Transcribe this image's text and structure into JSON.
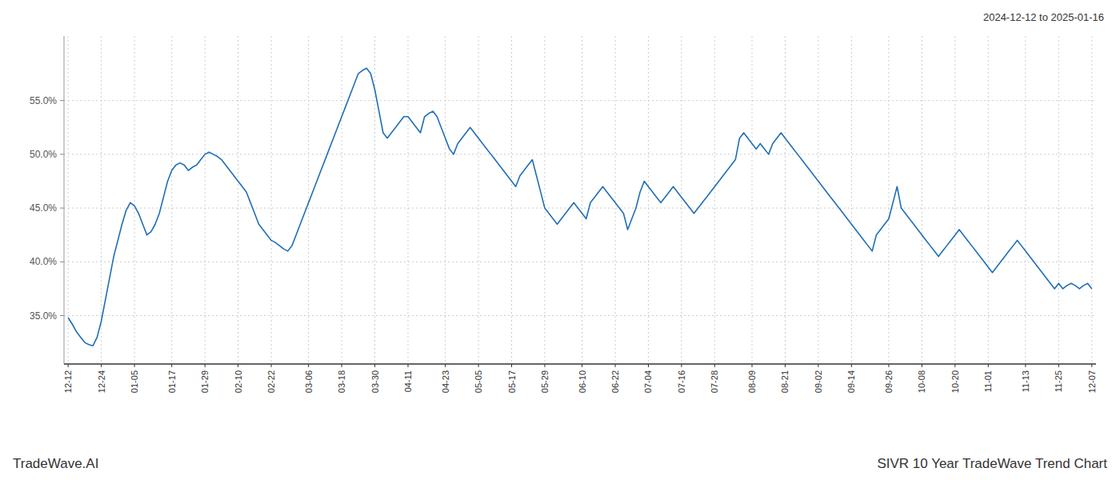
{
  "chart_data": {
    "type": "line",
    "title": "SIVR 10 Year TradeWave Trend Chart",
    "subtitle": "2024-12-12 to 2025-01-16",
    "annotations": [
      "TradeWave.AI"
    ],
    "color": "#1f6eb5",
    "grid": true,
    "ylim": [
      30.5,
      61.0
    ],
    "yticks": [
      {
        "value": 35.0,
        "label": "35.0%"
      },
      {
        "value": 40.0,
        "label": "40.0%"
      },
      {
        "value": 45.0,
        "label": "45.0%"
      },
      {
        "value": 50.0,
        "label": "50.0%"
      },
      {
        "value": 55.0,
        "label": "55.0%"
      }
    ],
    "categories": [
      "12-12",
      null,
      null,
      null,
      null,
      null,
      null,
      null,
      "12-24",
      null,
      null,
      null,
      null,
      null,
      null,
      null,
      "01-05",
      null,
      null,
      null,
      null,
      null,
      null,
      null,
      null,
      "01-17",
      null,
      null,
      null,
      null,
      null,
      null,
      null,
      "01-29",
      null,
      null,
      null,
      null,
      null,
      null,
      null,
      "02-10",
      null,
      null,
      null,
      null,
      null,
      null,
      null,
      "02-22",
      null,
      null,
      null,
      null,
      null,
      null,
      null,
      null,
      "03-06",
      null,
      null,
      null,
      null,
      null,
      null,
      null,
      "03-18",
      null,
      null,
      null,
      null,
      null,
      null,
      null,
      "03-30",
      null,
      null,
      null,
      null,
      null,
      null,
      null,
      "04-11",
      null,
      null,
      null,
      null,
      null,
      null,
      null,
      null,
      "04-23",
      null,
      null,
      null,
      null,
      null,
      null,
      null,
      "05-05",
      null,
      null,
      null,
      null,
      null,
      null,
      null,
      "05-17",
      null,
      null,
      null,
      null,
      null,
      null,
      null,
      "05-29",
      null,
      null,
      null,
      null,
      null,
      null,
      null,
      null,
      "06-10",
      null,
      null,
      null,
      null,
      null,
      null,
      null,
      "06-22",
      null,
      null,
      null,
      null,
      null,
      null,
      null,
      "07-04",
      null,
      null,
      null,
      null,
      null,
      null,
      null,
      "07-16",
      null,
      null,
      null,
      null,
      null,
      null,
      null,
      "07-28",
      null,
      null,
      null,
      null,
      null,
      null,
      null,
      null,
      "08-09",
      null,
      null,
      null,
      null,
      null,
      null,
      null,
      "08-21",
      null,
      null,
      null,
      null,
      null,
      null,
      null,
      "09-02",
      null,
      null,
      null,
      null,
      null,
      null,
      null,
      "09-14",
      null,
      null,
      null,
      null,
      null,
      null,
      null,
      null,
      "09-26",
      null,
      null,
      null,
      null,
      null,
      null,
      null,
      "10-08",
      null,
      null,
      null,
      null,
      null,
      null,
      null,
      "10-20",
      null,
      null,
      null,
      null,
      null,
      null,
      null,
      "11-01",
      null,
      null,
      null,
      null,
      null,
      null,
      null,
      null,
      "11-13",
      null,
      null,
      null,
      null,
      null,
      null,
      null,
      "11-25",
      null,
      null,
      null,
      null,
      null,
      null,
      null,
      "12-07"
    ],
    "values": [
      34.8,
      34.2,
      33.5,
      33.0,
      32.5,
      32.3,
      32.2,
      33.0,
      34.5,
      36.5,
      38.5,
      40.5,
      42.0,
      43.5,
      44.8,
      45.5,
      45.2,
      44.5,
      43.5,
      42.5,
      42.8,
      43.5,
      44.5,
      46.0,
      47.5,
      48.5,
      49.0,
      49.2,
      49.0,
      48.5,
      48.8,
      49.0,
      49.5,
      50.0,
      50.2,
      50.0,
      49.8,
      49.5,
      49.0,
      48.5,
      48.0,
      47.5,
      47.0,
      46.5,
      45.5,
      44.5,
      43.5,
      43.0,
      42.5,
      42.0,
      41.8,
      41.5,
      41.2,
      41.0,
      41.5,
      42.5,
      43.5,
      44.5,
      45.5,
      46.5,
      47.5,
      48.5,
      49.5,
      50.5,
      51.5,
      52.5,
      53.5,
      54.5,
      55.5,
      56.5,
      57.5,
      57.8,
      58.0,
      57.5,
      56.0,
      54.0,
      52.0,
      51.5,
      52.0,
      52.5,
      53.0,
      53.5,
      53.5,
      53.0,
      52.5,
      52.0,
      53.5,
      53.8,
      54.0,
      53.5,
      52.5,
      51.5,
      50.5,
      50.0,
      51.0,
      51.5,
      52.0,
      52.5,
      52.0,
      51.5,
      51.0,
      50.5,
      50.0,
      49.5,
      49.0,
      48.5,
      48.0,
      47.5,
      47.0,
      48.0,
      48.5,
      49.0,
      49.5,
      48.0,
      46.5,
      45.0,
      44.5,
      44.0,
      43.5,
      44.0,
      44.5,
      45.0,
      45.5,
      45.0,
      44.5,
      44.0,
      45.5,
      46.0,
      46.5,
      47.0,
      46.5,
      46.0,
      45.5,
      45.0,
      44.5,
      43.0,
      44.0,
      45.0,
      46.5,
      47.5,
      47.0,
      46.5,
      46.0,
      45.5,
      46.0,
      46.5,
      47.0,
      46.5,
      46.0,
      45.5,
      45.0,
      44.5,
      45.0,
      45.5,
      46.0,
      46.5,
      47.0,
      47.5,
      48.0,
      48.5,
      49.0,
      49.5,
      51.5,
      52.0,
      51.5,
      51.0,
      50.5,
      51.0,
      50.5,
      50.0,
      51.0,
      51.5,
      52.0,
      51.5,
      51.0,
      50.5,
      50.0,
      49.5,
      49.0,
      48.5,
      48.0,
      47.5,
      47.0,
      46.5,
      46.0,
      45.5,
      45.0,
      44.5,
      44.0,
      43.5,
      43.0,
      42.5,
      42.0,
      41.5,
      41.0,
      42.5,
      43.0,
      43.5,
      44.0,
      45.5,
      47.0,
      45.0,
      44.5,
      44.0,
      43.5,
      43.0,
      42.5,
      42.0,
      41.5,
      41.0,
      40.5,
      41.0,
      41.5,
      42.0,
      42.5,
      43.0,
      42.5,
      42.0,
      41.5,
      41.0,
      40.5,
      40.0,
      39.5,
      39.0,
      39.5,
      40.0,
      40.5,
      41.0,
      41.5,
      42.0,
      41.5,
      41.0,
      40.5,
      40.0,
      39.5,
      39.0,
      38.5,
      38.0,
      37.5,
      38.0,
      37.5,
      37.8,
      38.0,
      37.8,
      37.5,
      37.8,
      38.0,
      37.5
    ]
  }
}
